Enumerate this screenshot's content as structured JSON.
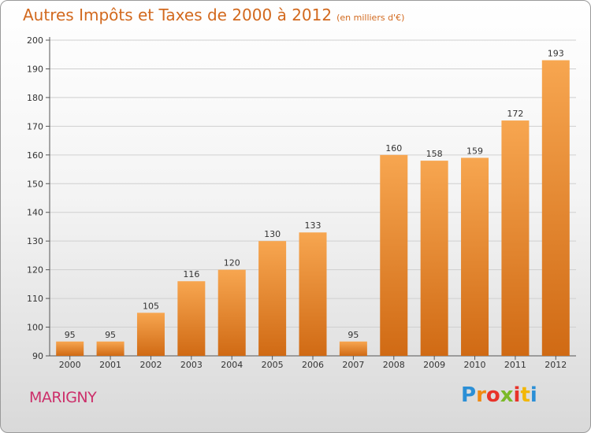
{
  "header": {
    "title": "Autres Impôts et Taxes de 2000 à 2012",
    "subtitle": "(en milliers d'€)"
  },
  "footer": {
    "commune": "MARIGNY",
    "logo_letters": [
      "P",
      "r",
      "o",
      "x",
      "i",
      "t",
      "i"
    ]
  },
  "colors": {
    "title": "#d2691e",
    "commune": "#cc2f6a",
    "bar_top": "#f7a650",
    "bar_bottom": "#d06a14",
    "logo": [
      "#2b8fd6",
      "#f08a12",
      "#e8332a",
      "#7bb928",
      "#e8332a",
      "#f2b705",
      "#2b8fd6"
    ]
  },
  "chart_data": {
    "type": "bar",
    "categories": [
      "2000",
      "2001",
      "2002",
      "2003",
      "2004",
      "2005",
      "2006",
      "2007",
      "2008",
      "2009",
      "2010",
      "2011",
      "2012"
    ],
    "values": [
      95,
      95,
      105,
      116,
      120,
      130,
      133,
      95,
      160,
      158,
      159,
      172,
      193
    ],
    "ylim": [
      90,
      200
    ],
    "yticks": [
      90,
      100,
      110,
      120,
      130,
      140,
      150,
      160,
      170,
      180,
      190,
      200
    ],
    "grid": true,
    "data_labels": true
  }
}
